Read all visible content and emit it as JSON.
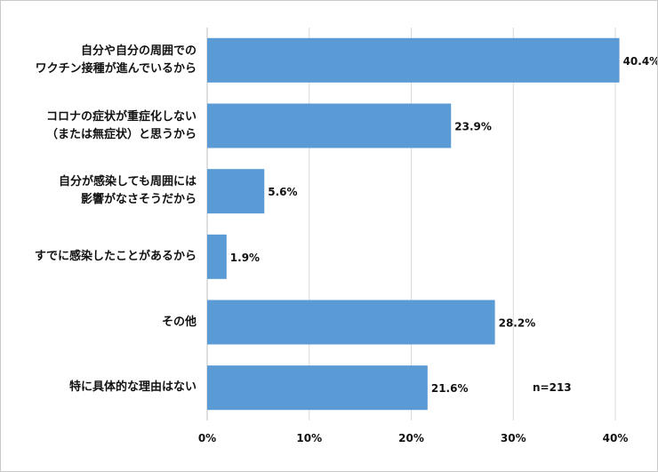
{
  "chart_data": {
    "type": "bar",
    "orientation": "horizontal",
    "categories": [
      "自分や自分の周囲での\nワクチン接種が進んでいるから",
      "コロナの症状が重症化しない\n（または無症状）と思うから",
      "自分が感染しても周囲には\n影響がなさそうだから",
      "すでに感染したことがあるから",
      "その他",
      "特に具体的な理由はない"
    ],
    "values": [
      40.4,
      23.9,
      5.6,
      1.9,
      28.2,
      21.6
    ],
    "value_labels": [
      "40.4%",
      "23.9%",
      "5.6%",
      "1.9%",
      "28.2%",
      "21.6%"
    ],
    "xlim": [
      0,
      40
    ],
    "x_ticks": [
      "0%",
      "10%",
      "20%",
      "30%",
      "40%"
    ],
    "bar_color": "#5b9bd5",
    "grid": true,
    "annotation": "n=213"
  }
}
